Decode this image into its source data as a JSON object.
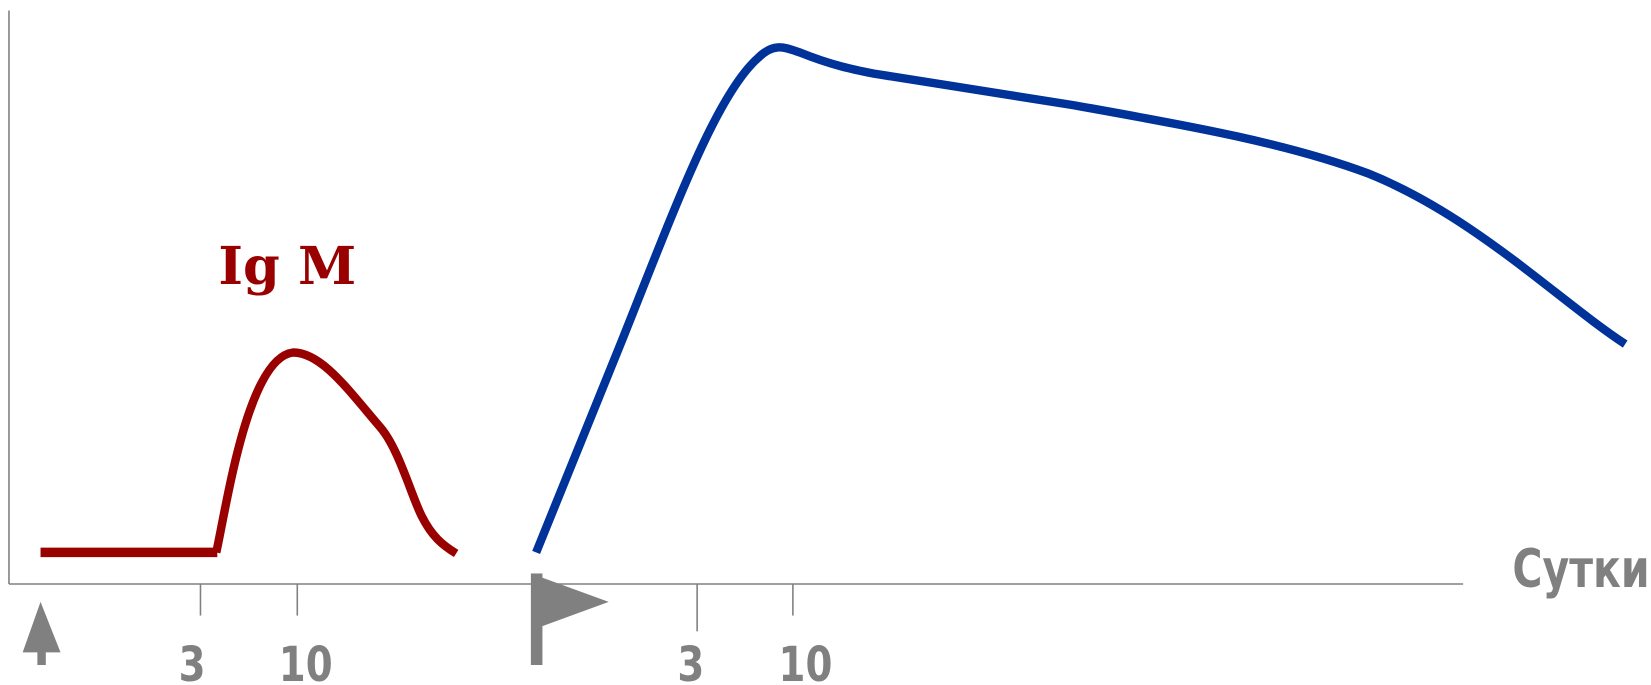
{
  "curve_label": "Ig M",
  "x_axis_label": "Сутки",
  "ticks": [
    "3",
    "10",
    "3",
    "10"
  ]
}
